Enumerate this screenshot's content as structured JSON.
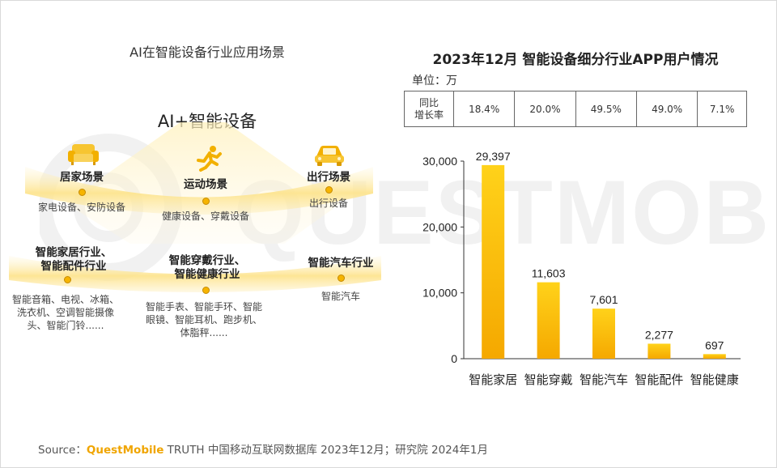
{
  "left_panel": {
    "title": "AI在智能设备行业应用场景",
    "center_label": "AI+智能设备",
    "scenes": [
      {
        "name": "居家场景",
        "desc": "家电设备、安防设备",
        "icon": "sofa-icon"
      },
      {
        "name": "运动场景",
        "desc": "健康设备、穿戴设备",
        "icon": "runner-icon"
      },
      {
        "name": "出行场景",
        "desc": "出行设备",
        "icon": "car-icon"
      }
    ],
    "industries": [
      {
        "name": [
          "智能家居行业、",
          "智能配件行业"
        ],
        "desc": [
          "智能音箱、电视、冰箱、",
          "洗衣机、空调智能摄像",
          "头、智能门铃......"
        ]
      },
      {
        "name": [
          "智能穿戴行业、",
          "智能健康行业"
        ],
        "desc": [
          "智能手表、智能手环、智能",
          "眼镜、智能耳机、跑步机、",
          "体脂秤......"
        ]
      },
      {
        "name": [
          "智能汽车行业"
        ],
        "desc": [
          "智能汽车"
        ]
      }
    ]
  },
  "right_panel": {
    "title": "2023年12月 智能设备细分行业APP用户情况",
    "unit_label": "单位：万",
    "yoy_table": {
      "header": [
        "同比",
        "增长率"
      ],
      "values": [
        "18.4%",
        "20.0%",
        "49.5%",
        "49.0%",
        "7.1%"
      ]
    }
  },
  "watermark_text": "QUESTMOBILE",
  "source": {
    "prefix": "Source：",
    "brand": "QuestMobile",
    "rest": " TRUTH 中国移动互联网数据库 2023年12月；研究院 2024年1月"
  },
  "colors": {
    "accent": "#f6b400",
    "bar_top": "#ffd21a",
    "bar_bottom": "#f5a800",
    "band": "#fde9a6"
  },
  "chart_data": {
    "type": "bar",
    "title": "2023年12月 智能设备细分行业APP用户情况",
    "categories": [
      "智能家居",
      "智能穿戴",
      "智能汽车",
      "智能配件",
      "智能健康"
    ],
    "values": [
      29397,
      11603,
      7601,
      2277,
      697
    ],
    "value_labels": [
      "29,397",
      "11,603",
      "7,601",
      "2,277",
      "697"
    ],
    "yticks": [
      0,
      10000,
      20000,
      30000
    ],
    "ytick_labels": [
      "0",
      "10,000",
      "20,000",
      "30,000"
    ],
    "ylim": [
      0,
      30000
    ],
    "ylabel": "",
    "xlabel": "",
    "grid": false,
    "legend": "none"
  }
}
